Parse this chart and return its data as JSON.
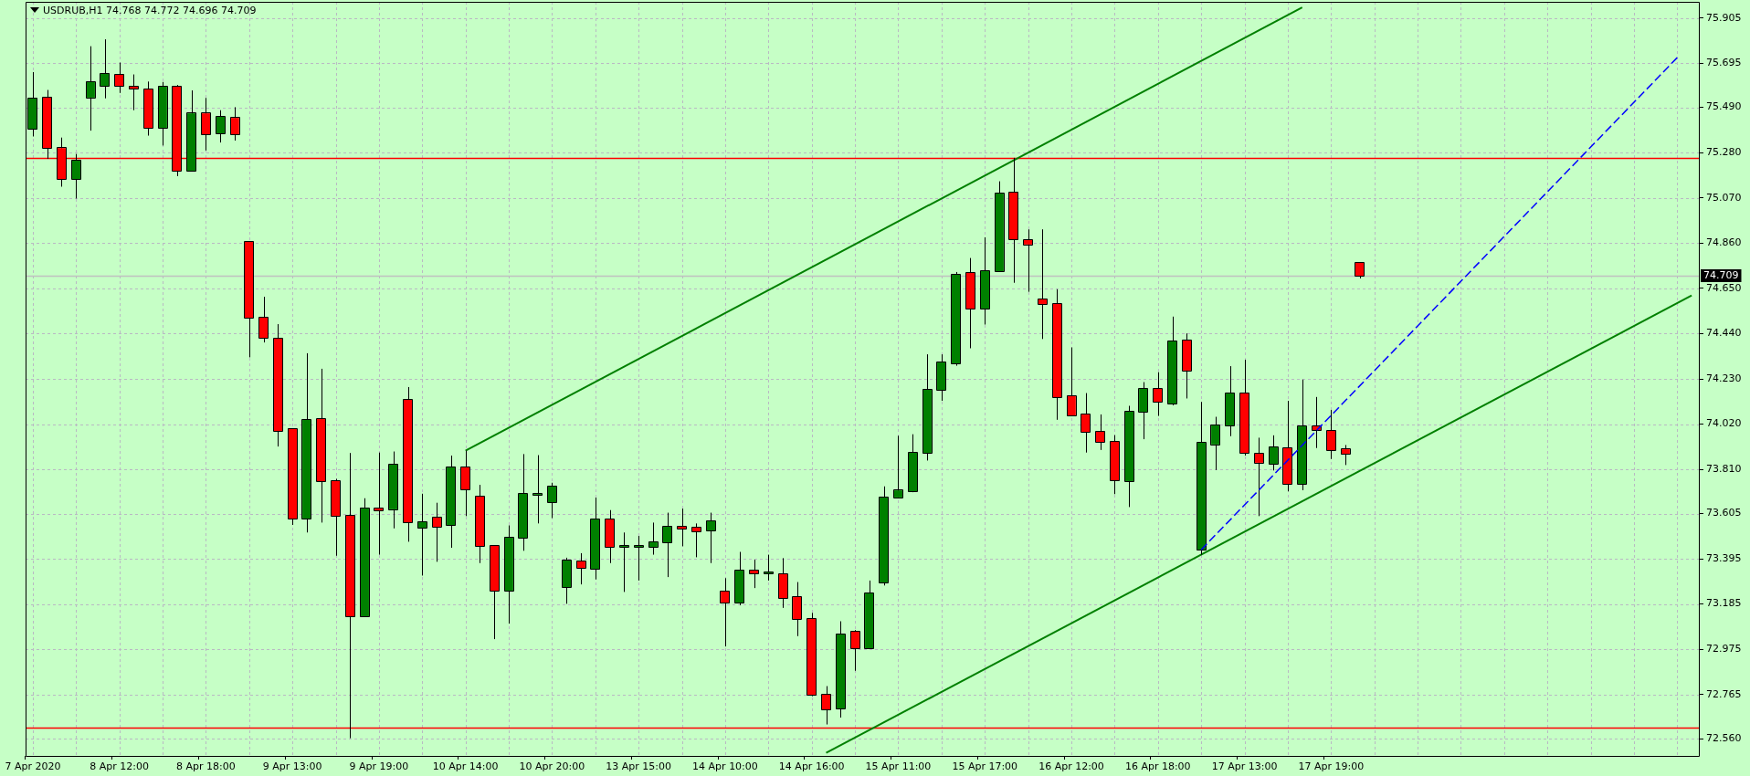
{
  "chart_data": {
    "type": "candlestick",
    "title": "USDRUB,H1 74.768 74.772 74.696 74.709",
    "categories": [
      "7 Apr 2020",
      null,
      null,
      null,
      null,
      null,
      "8 Apr 12:00",
      null,
      null,
      null,
      null,
      null,
      "8 Apr 18:00",
      null,
      null,
      null,
      null,
      null,
      "9 Apr 13:00",
      null,
      null,
      null,
      null,
      null,
      "9 Apr 19:00",
      null,
      null,
      null,
      null,
      null,
      "10 Apr 14:00",
      null,
      null,
      null,
      null,
      null,
      "10 Apr 20:00",
      null,
      null,
      null,
      null,
      null,
      "13 Apr 15:00",
      null,
      null,
      null,
      null,
      null,
      "14 Apr 10:00",
      null,
      null,
      null,
      null,
      null,
      "14 Apr 16:00",
      null,
      null,
      null,
      null,
      null,
      "15 Apr 11:00",
      null,
      null,
      null,
      null,
      null,
      "15 Apr 17:00",
      null,
      null,
      null,
      null,
      null,
      "16 Apr 12:00",
      null,
      null,
      null,
      null,
      null,
      "16 Apr 18:00",
      null,
      null,
      null,
      null,
      null,
      "17 Apr 13:00",
      null,
      null,
      null,
      null,
      null,
      "17 Apr 19:00",
      null,
      null,
      null,
      null,
      null,
      null,
      null,
      null,
      null,
      null,
      null,
      null,
      null,
      null,
      null,
      null,
      null,
      null,
      null,
      null,
      null,
      null,
      null,
      null,
      null
    ],
    "ylim": [
      72.48,
      75.98
    ],
    "yticks": [
      {
        "value": 72.56,
        "label": "72.560"
      },
      72.765,
      72.975,
      73.185,
      73.395,
      73.605,
      {
        "value": 73.81,
        "label": "73.810"
      },
      {
        "value": 74.02,
        "label": "74.020"
      },
      {
        "value": 74.23,
        "label": "74.230"
      },
      {
        "value": 74.44,
        "label": "74.440"
      },
      {
        "value": 74.65,
        "label": "74.650"
      },
      {
        "value": 74.86,
        "label": "74.860"
      },
      {
        "value": 75.07,
        "label": "75.070"
      },
      {
        "value": 75.28,
        "label": "75.280"
      },
      {
        "value": 75.49,
        "label": "75.490"
      },
      75.695,
      75.905
    ],
    "grid": true,
    "series": [
      {
        "type": "candlestick",
        "ohlc": [
          [
            75.389,
            75.654,
            75.355,
            75.532
          ],
          [
            75.537,
            75.571,
            75.251,
            75.3
          ],
          [
            75.3,
            75.35,
            75.122,
            75.159
          ],
          [
            75.159,
            75.274,
            75.067,
            75.244
          ],
          [
            75.537,
            75.774,
            75.382,
            75.608
          ],
          [
            75.59,
            75.806,
            75.532,
            75.647
          ],
          [
            75.643,
            75.698,
            75.557,
            75.59
          ],
          [
            75.587,
            75.643,
            75.477,
            75.576
          ],
          [
            75.574,
            75.61,
            75.359,
            75.396
          ],
          [
            75.396,
            75.608,
            75.313,
            75.587
          ],
          [
            75.587,
            75.594,
            75.171,
            75.196
          ],
          [
            75.196,
            75.569,
            75.194,
            75.461
          ],
          [
            75.461,
            75.534,
            75.29,
            75.366
          ],
          [
            75.371,
            75.477,
            75.327,
            75.445
          ],
          [
            75.44,
            75.491,
            75.336,
            75.366
          ],
          [
            74.867,
            74.867,
            74.33,
            74.514
          ],
          [
            74.514,
            74.611,
            74.399,
            74.422
          ],
          [
            74.415,
            74.484,
            73.916,
            73.989
          ],
          [
            73.999,
            73.999,
            73.552,
            73.582
          ],
          [
            73.582,
            74.349,
            73.517,
            74.038
          ],
          [
            74.042,
            74.277,
            73.563,
            73.754
          ],
          [
            73.754,
            73.766,
            73.409,
            73.596
          ],
          [
            73.596,
            73.886,
            72.562,
            73.128
          ],
          [
            73.128,
            73.676,
            73.128,
            73.63
          ],
          [
            73.63,
            73.888,
            73.414,
            73.621
          ],
          [
            73.626,
            73.893,
            73.536,
            73.833
          ],
          [
            74.132,
            74.192,
            73.474,
            73.563
          ],
          [
            73.538,
            73.697,
            73.317,
            73.566
          ],
          [
            73.586,
            73.655,
            73.381,
            73.545
          ],
          [
            73.55,
            73.874,
            73.446,
            73.821
          ],
          [
            73.821,
            73.897,
            73.593,
            73.718
          ],
          [
            73.683,
            73.738,
            73.375,
            73.455
          ],
          [
            73.455,
            73.455,
            73.022,
            73.248
          ],
          [
            73.248,
            73.55,
            73.094,
            73.494
          ],
          [
            73.494,
            73.881,
            73.432,
            73.695
          ],
          [
            73.69,
            73.876,
            73.559,
            73.69
          ],
          [
            73.658,
            73.748,
            73.584,
            73.731
          ],
          [
            73.264,
            73.4,
            73.186,
            73.386
          ],
          [
            73.382,
            73.421,
            73.276,
            73.354
          ],
          [
            73.347,
            73.679,
            73.299,
            73.577
          ],
          [
            73.577,
            73.621,
            73.375,
            73.451
          ],
          [
            73.451,
            73.517,
            73.241,
            73.451
          ],
          [
            73.451,
            73.501,
            73.294,
            73.451
          ],
          [
            73.451,
            73.563,
            73.414,
            73.471
          ],
          [
            73.471,
            73.609,
            73.31,
            73.545
          ],
          [
            73.545,
            73.628,
            73.453,
            73.533
          ],
          [
            73.538,
            73.559,
            73.402,
            73.522
          ],
          [
            73.527,
            73.609,
            73.375,
            73.57
          ],
          [
            73.243,
            73.305,
            72.988,
            73.19
          ],
          [
            73.19,
            73.427,
            73.179,
            73.34
          ],
          [
            73.34,
            73.391,
            73.259,
            73.326
          ],
          [
            73.328,
            73.414,
            73.294,
            73.328
          ],
          [
            73.324,
            73.398,
            73.167,
            73.213
          ],
          [
            73.218,
            73.287,
            73.036,
            73.117
          ],
          [
            73.114,
            73.144,
            72.757,
            72.764
          ],
          [
            72.764,
            72.804,
            72.626,
            72.695
          ],
          [
            72.7,
            73.105,
            72.658,
            73.045
          ],
          [
            73.057,
            73.064,
            72.875,
            72.981
          ],
          [
            72.981,
            73.294,
            72.981,
            73.234
          ],
          [
            73.287,
            73.731,
            73.271,
            73.679
          ],
          [
            73.681,
            73.966,
            73.681,
            73.711
          ],
          [
            73.708,
            73.973,
            73.704,
            73.886
          ],
          [
            73.886,
            74.344,
            73.851,
            74.18
          ],
          [
            74.18,
            74.344,
            74.128,
            74.307
          ],
          [
            74.302,
            74.726,
            74.291,
            74.715
          ],
          [
            74.722,
            74.791,
            74.372,
            74.556
          ],
          [
            74.556,
            74.887,
            74.482,
            74.731
          ],
          [
            74.731,
            75.147,
            74.731,
            75.09
          ],
          [
            75.095,
            75.256,
            74.676,
            74.878
          ],
          [
            74.876,
            74.924,
            74.634,
            74.855
          ],
          [
            74.6,
            74.924,
            74.415,
            74.579
          ],
          [
            74.577,
            74.646,
            74.04,
            74.146
          ],
          [
            74.151,
            74.376,
            74.061,
            74.061
          ],
          [
            74.063,
            74.164,
            73.888,
            73.985
          ],
          [
            73.985,
            74.065,
            73.9,
            73.939
          ],
          [
            73.939,
            73.969,
            73.695,
            73.761
          ],
          [
            73.757,
            74.105,
            73.635,
            74.077
          ],
          [
            74.079,
            74.215,
            73.95,
            74.183
          ],
          [
            74.183,
            74.261,
            74.058,
            74.123
          ],
          [
            74.116,
            74.519,
            74.107,
            74.404
          ],
          [
            74.408,
            74.441,
            74.139,
            74.27
          ],
          [
            73.437,
            74.123,
            73.414,
            73.932
          ],
          [
            73.927,
            74.054,
            73.807,
            74.015
          ],
          [
            74.015,
            74.289,
            73.964,
            74.164
          ],
          [
            74.164,
            74.319,
            73.874,
            73.886
          ],
          [
            73.881,
            73.957,
            73.593,
            73.842
          ],
          [
            73.835,
            73.968,
            73.805,
            73.913
          ],
          [
            73.909,
            74.128,
            73.708,
            73.743
          ],
          [
            73.743,
            74.227,
            73.713,
            74.008
          ],
          [
            74.008,
            74.146,
            73.909,
            73.992
          ],
          [
            73.989,
            74.086,
            73.858,
            73.9
          ],
          [
            73.902,
            73.923,
            73.83,
            73.881
          ],
          [
            74.768,
            74.772,
            74.696,
            74.709
          ],
          null,
          null,
          null,
          null,
          null,
          null,
          null,
          null,
          null,
          null,
          null,
          null,
          null,
          null,
          null,
          null,
          null,
          null,
          null,
          null,
          null,
          null,
          null
        ],
        "colors": [
          "#008000",
          "#ff0000",
          "#ff0000",
          "#008000",
          "#008000",
          "#008000",
          "#ff0000",
          "#ff0000",
          "#ff0000",
          "#008000",
          "#ff0000",
          "#008000",
          "#ff0000",
          "#008000",
          "#ff0000",
          "#ff0000",
          "#ff0000",
          "#ff0000",
          "#ff0000",
          "#008000",
          "#ff0000",
          "#ff0000",
          "#ff0000",
          "#008000",
          "#ff0000",
          "#008000",
          "#ff0000",
          "#008000",
          "#ff0000",
          "#008000",
          "#ff0000",
          "#ff0000",
          "#ff0000",
          "#008000",
          "#008000",
          "#008000",
          "#008000",
          "#008000",
          "#ff0000",
          "#008000",
          "#ff0000",
          "#008000",
          "#008000",
          "#008000",
          "#008000",
          "#ff0000",
          "#ff0000",
          "#008000",
          "#ff0000",
          "#008000",
          "#ff0000",
          "#008000",
          "#ff0000",
          "#ff0000",
          "#ff0000",
          "#ff0000",
          "#008000",
          "#ff0000",
          "#008000",
          "#008000",
          "#008000",
          "#008000",
          "#008000",
          "#008000",
          "#008000",
          "#ff0000",
          "#008000",
          "#008000",
          "#ff0000",
          "#ff0000",
          "#ff0000",
          "#ff0000",
          "#ff0000",
          "#ff0000",
          "#ff0000",
          "#ff0000",
          "#008000",
          "#008000",
          "#ff0000",
          "#008000",
          "#ff0000",
          "#008000",
          "#008000",
          "#008000",
          "#ff0000",
          "#ff0000",
          "#008000",
          "#ff0000",
          "#008000",
          "#ff0000",
          "#ff0000",
          "#ff0000",
          "#ff0000",
          null,
          null,
          null,
          null,
          null,
          null,
          null,
          null,
          null,
          null,
          null,
          null,
          null,
          null,
          null,
          null,
          null,
          null,
          null,
          null,
          null,
          null,
          null
        ]
      },
      {
        "type": "line",
        "color": "#008000",
        "values": [
          null,
          null,
          null,
          null,
          null,
          null,
          null,
          null,
          null,
          null,
          null,
          null,
          null,
          null,
          null,
          null,
          null,
          null,
          null,
          null,
          null,
          null,
          null,
          null,
          null,
          null,
          null,
          null,
          null,
          null,
          73.897,
          null,
          null,
          null,
          null,
          null,
          null,
          null,
          null,
          null,
          null,
          null,
          null,
          null,
          null,
          null,
          null,
          null,
          null,
          null,
          null,
          null,
          null,
          null,
          null,
          null,
          null,
          null,
          null,
          null,
          null,
          null,
          null,
          null,
          null,
          null,
          null,
          null,
          null,
          null,
          null,
          null,
          null,
          null,
          null,
          null,
          null,
          null,
          null,
          null,
          null,
          null,
          null,
          null,
          null,
          null,
          null,
          null,
          75.954,
          null,
          null,
          null,
          null,
          null,
          null,
          null,
          null,
          null,
          null,
          null,
          null,
          null,
          null,
          null,
          null,
          null,
          null,
          null,
          null,
          null,
          null,
          null,
          null,
          null,
          null,
          null
        ]
      },
      {
        "type": "line",
        "color": "#008000",
        "values": [
          null,
          null,
          null,
          null,
          null,
          null,
          null,
          null,
          null,
          null,
          null,
          null,
          null,
          null,
          null,
          null,
          null,
          null,
          null,
          null,
          null,
          null,
          null,
          null,
          null,
          null,
          null,
          null,
          null,
          null,
          null,
          null,
          null,
          null,
          null,
          null,
          null,
          null,
          null,
          null,
          null,
          null,
          null,
          null,
          null,
          null,
          null,
          null,
          null,
          null,
          null,
          null,
          null,
          null,
          null,
          72.494,
          null,
          null,
          null,
          null,
          null,
          null,
          null,
          null,
          null,
          null,
          null,
          null,
          null,
          null,
          null,
          null,
          null,
          null,
          null,
          null,
          null,
          null,
          null,
          null,
          null,
          null,
          null,
          null,
          null,
          null,
          null,
          null,
          null,
          null,
          null,
          null,
          null,
          null,
          null,
          null,
          null,
          null,
          null,
          null,
          null,
          null,
          null,
          null,
          null,
          null,
          null,
          null,
          null,
          null,
          null,
          null,
          null,
          null,
          null,
          74.617
        ]
      },
      {
        "type": "line",
        "color": "#0000ff",
        "line_style": "dashed",
        "values": [
          null,
          null,
          null,
          null,
          null,
          null,
          null,
          null,
          null,
          null,
          null,
          null,
          null,
          null,
          null,
          null,
          null,
          null,
          null,
          null,
          null,
          null,
          null,
          null,
          null,
          null,
          null,
          null,
          null,
          null,
          null,
          null,
          null,
          null,
          null,
          null,
          null,
          null,
          null,
          null,
          null,
          null,
          null,
          null,
          null,
          null,
          null,
          null,
          null,
          null,
          null,
          null,
          null,
          null,
          null,
          null,
          null,
          null,
          null,
          null,
          null,
          null,
          null,
          null,
          null,
          null,
          null,
          null,
          null,
          null,
          null,
          null,
          null,
          null,
          null,
          null,
          null,
          null,
          null,
          null,
          null,
          73.437,
          null,
          null,
          null,
          null,
          null,
          null,
          null,
          null,
          null,
          null,
          null,
          null,
          null,
          null,
          null,
          null,
          null,
          null,
          null,
          null,
          null,
          null,
          null,
          null,
          null,
          null,
          null,
          null,
          null,
          null,
          null,
          null,
          75.721,
          null
        ]
      }
    ],
    "ref_lines": [
      {
        "axis": "y",
        "value": 75.255,
        "color": "#ff0000"
      },
      {
        "axis": "y",
        "value": 72.61,
        "color": "#ff0000"
      },
      {
        "axis": "y",
        "value": 74.709,
        "label": "74.709",
        "color": "#c0c0c0"
      }
    ]
  }
}
